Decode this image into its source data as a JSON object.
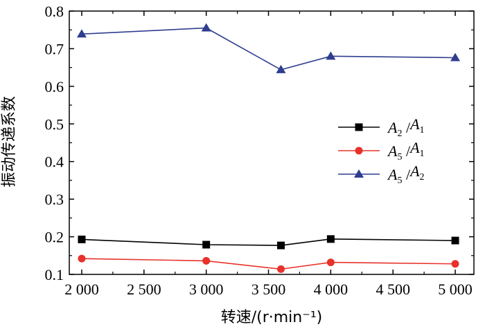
{
  "chart_data": {
    "type": "line",
    "xlabel": "转速/(r·min⁻¹)",
    "ylabel": "振动传递系数",
    "xlim": [
      1900,
      5150
    ],
    "ylim": [
      0.1,
      0.8
    ],
    "xticks": [
      2000,
      2500,
      3000,
      3500,
      4000,
      4500,
      5000
    ],
    "xtick_labels": [
      "2 000",
      "2 500",
      "3 000",
      "3 500",
      "4 000",
      "4 500",
      "5 000"
    ],
    "yticks": [
      0.1,
      0.2,
      0.3,
      0.4,
      0.5,
      0.6,
      0.7,
      0.8
    ],
    "ytick_labels": [
      "0.1",
      "0.2",
      "0.3",
      "0.4",
      "0.5",
      "0.6",
      "0.7",
      "0.8"
    ],
    "x": [
      2000,
      3000,
      3600,
      4000,
      5000
    ],
    "legend_position": "center-right",
    "grid": false,
    "series": [
      {
        "name": "A2/A1",
        "legend": {
          "a": "A",
          "a_sub": "2",
          "sep": " /",
          "b": "A",
          "b_sub": "1"
        },
        "values": [
          0.193,
          0.179,
          0.177,
          0.194,
          0.19
        ],
        "color": "#000000",
        "marker": "square"
      },
      {
        "name": "A5/A1",
        "legend": {
          "a": "A",
          "a_sub": "5",
          "sep": " /",
          "b": "A",
          "b_sub": "1"
        },
        "values": [
          0.142,
          0.136,
          0.114,
          0.132,
          0.128
        ],
        "color": "#e8312a",
        "marker": "circle"
      },
      {
        "name": "A5/A2",
        "legend": {
          "a": "A",
          "a_sub": "5",
          "sep": " /",
          "b": "A",
          "b_sub": "2"
        },
        "values": [
          0.739,
          0.755,
          0.644,
          0.68,
          0.676
        ],
        "color": "#2e3d8f",
        "marker": "triangle"
      }
    ]
  }
}
